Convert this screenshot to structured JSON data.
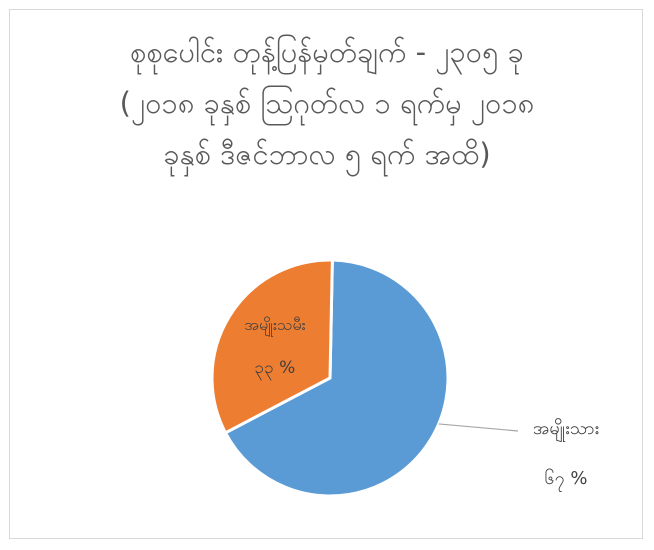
{
  "chart_data": {
    "type": "pie",
    "title_lines": [
      "စုစုပေါင်း တုန့်ပြန်မှတ်ချက် - ၂၃၀၅ ခု",
      "(၂၀၁၈ ခုနှစ် သြဂုတ်လ ၁ ရက်မှ ၂၀၁၈",
      "ခုနှစ် ဒီဇင်ဘာလ ၅ ရက် အထိ)"
    ],
    "categories": [
      "အမျိုးသား",
      "အမျိုးသမီး"
    ],
    "values": [
      67,
      33
    ],
    "value_labels": [
      "၆၇ %",
      "၃၃ %"
    ],
    "colors": [
      "#5b9bd5",
      "#ed7d31"
    ],
    "legend": "none"
  }
}
